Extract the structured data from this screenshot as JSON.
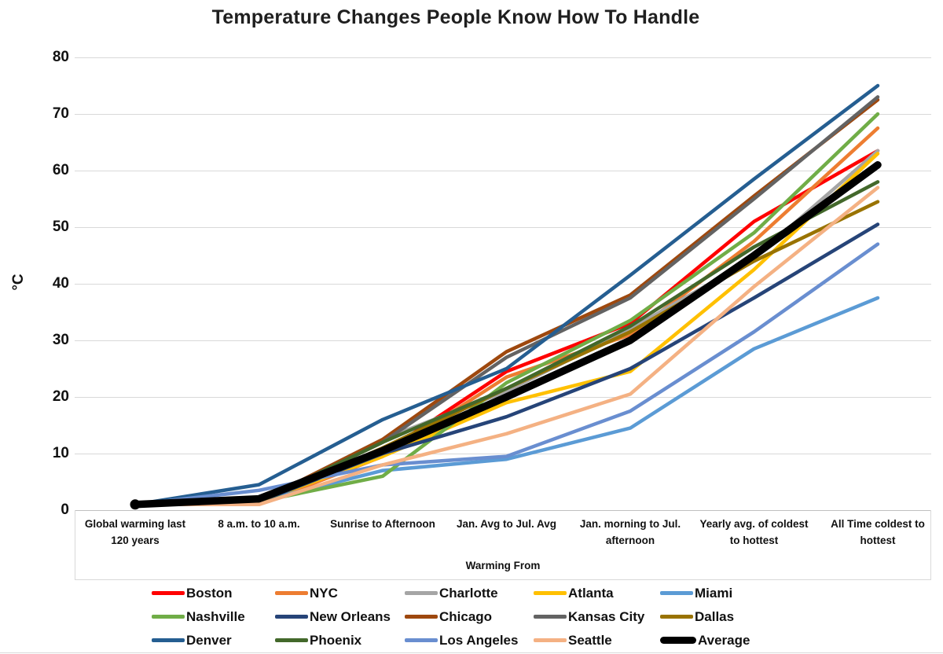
{
  "title": "Temperature Changes People Know How To Handle",
  "y_axis": {
    "label": "°C",
    "ticks": [
      0,
      10,
      20,
      30,
      40,
      50,
      60,
      70,
      80
    ],
    "min": 0,
    "max": 80
  },
  "x_axis": {
    "label": "Warming From"
  },
  "colors": {
    "gridline": "#D9D9D9",
    "axis_line": "#BFBFBF",
    "text": "#111111"
  },
  "chart_data": {
    "type": "line",
    "title": "Temperature Changes People Know How To Handle",
    "xlabel": "Warming From",
    "ylabel": "°C",
    "ylim": [
      0,
      80
    ],
    "grid": true,
    "legend_position": "bottom",
    "categories": [
      "Global warming last\n120 years",
      "8 a.m. to 10 a.m.",
      "Sunrise to Afternoon",
      "Jan. Avg to Jul. Avg",
      "Jan. morning to Jul.\nafternoon",
      "Yearly avg. of coldest\nto hottest",
      "All Time coldest to\nhottest"
    ],
    "series": [
      {
        "name": "Boston",
        "color": "#FF0000",
        "values": [
          1,
          1.5,
          10,
          24.5,
          33,
          51,
          63.5
        ]
      },
      {
        "name": "NYC",
        "color": "#ED7D31",
        "values": [
          1,
          1,
          9.5,
          23.5,
          31,
          47.5,
          67.5
        ]
      },
      {
        "name": "Charlotte",
        "color": "#A5A5A5",
        "values": [
          1,
          1.5,
          12.5,
          21,
          32,
          44.5,
          63.5
        ]
      },
      {
        "name": "Atlanta",
        "color": "#FFC000",
        "values": [
          1,
          1.5,
          9.5,
          19,
          24.5,
          42.5,
          63
        ]
      },
      {
        "name": "Miami",
        "color": "#5B9BD5",
        "values": [
          1,
          1.5,
          7,
          9,
          14.5,
          28.5,
          37.5
        ]
      },
      {
        "name": "Nashville",
        "color": "#70AD47",
        "values": [
          1,
          1.5,
          6,
          22.5,
          33.5,
          49,
          70
        ]
      },
      {
        "name": "New Orleans",
        "color": "#264478",
        "values": [
          1,
          1.5,
          10,
          16.5,
          25,
          37.5,
          50.5
        ]
      },
      {
        "name": "Chicago",
        "color": "#9E480E",
        "values": [
          1,
          1.5,
          12.5,
          28,
          38,
          55.5,
          72.5
        ]
      },
      {
        "name": "Kansas City",
        "color": "#636363",
        "values": [
          1,
          1.5,
          12,
          27,
          37.5,
          55,
          73
        ]
      },
      {
        "name": "Dallas",
        "color": "#997300",
        "values": [
          1,
          1.5,
          11,
          21.5,
          31.5,
          44,
          54.5
        ]
      },
      {
        "name": "Denver",
        "color": "#255E91",
        "values": [
          1,
          4.5,
          16,
          25,
          41.5,
          58.5,
          75
        ]
      },
      {
        "name": "Phoenix",
        "color": "#43682B",
        "values": [
          1,
          1.5,
          12,
          21.5,
          32.5,
          46.5,
          58
        ]
      },
      {
        "name": "Los Angeles",
        "color": "#698ED0",
        "values": [
          1,
          3.5,
          8,
          9.5,
          17.5,
          31.5,
          47
        ]
      },
      {
        "name": "Seattle",
        "color": "#F4B183",
        "values": [
          1,
          1,
          8,
          13.5,
          20.5,
          39.5,
          57
        ]
      },
      {
        "name": "Average",
        "color": "#000000",
        "values": [
          1,
          2,
          10.5,
          20,
          30,
          45,
          61
        ],
        "emphasis": true
      }
    ]
  }
}
